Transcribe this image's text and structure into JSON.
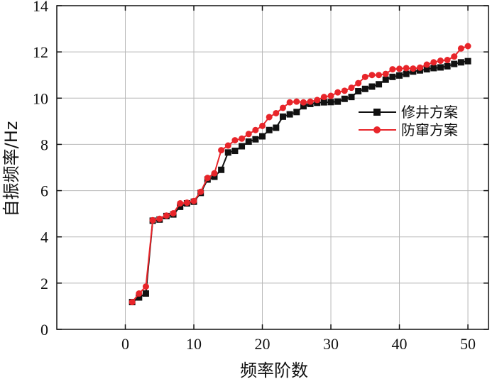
{
  "chart_data": {
    "type": "line",
    "xlabel": "频率阶数",
    "ylabel": "自振频率/Hz",
    "xlim": [
      -10,
      53
    ],
    "ylim": [
      0,
      14
    ],
    "xticks": [
      0,
      10,
      20,
      30,
      40,
      50
    ],
    "yticks": [
      0,
      2,
      4,
      6,
      8,
      10,
      12,
      14
    ],
    "grid": true,
    "legend_position": "right-middle",
    "x": [
      1,
      2,
      3,
      4,
      5,
      6,
      7,
      8,
      9,
      10,
      11,
      12,
      13,
      14,
      15,
      16,
      17,
      18,
      19,
      20,
      21,
      22,
      23,
      24,
      25,
      26,
      27,
      28,
      29,
      30,
      31,
      32,
      33,
      34,
      35,
      36,
      37,
      38,
      39,
      40,
      41,
      42,
      43,
      44,
      45,
      46,
      47,
      48,
      49,
      50
    ],
    "series": [
      {
        "name": "修井方案",
        "color": "#111111",
        "marker": "square",
        "values": [
          1.18,
          1.38,
          1.55,
          4.7,
          4.75,
          4.9,
          4.97,
          5.3,
          5.45,
          5.52,
          5.9,
          6.48,
          6.6,
          6.9,
          7.65,
          7.72,
          7.92,
          8.12,
          8.22,
          8.35,
          8.62,
          8.72,
          9.2,
          9.3,
          9.4,
          9.65,
          9.75,
          9.8,
          9.82,
          9.83,
          9.85,
          9.97,
          10.05,
          10.3,
          10.4,
          10.5,
          10.6,
          10.8,
          10.92,
          10.98,
          11.05,
          11.15,
          11.2,
          11.25,
          11.3,
          11.33,
          11.38,
          11.48,
          11.55,
          11.6
        ]
      },
      {
        "name": "防窜方案",
        "color": "#e8252a",
        "marker": "circle",
        "values": [
          1.18,
          1.55,
          1.85,
          4.72,
          4.78,
          4.92,
          5.02,
          5.45,
          5.48,
          5.55,
          5.95,
          6.55,
          6.75,
          7.75,
          7.95,
          8.18,
          8.25,
          8.45,
          8.62,
          8.8,
          9.18,
          9.35,
          9.58,
          9.82,
          9.85,
          9.82,
          9.85,
          9.92,
          10.05,
          10.1,
          10.25,
          10.32,
          10.45,
          10.65,
          10.92,
          11.0,
          11.0,
          11.05,
          11.25,
          11.27,
          11.3,
          11.28,
          11.32,
          11.45,
          11.55,
          11.62,
          11.65,
          11.8,
          12.15,
          12.25
        ]
      }
    ]
  }
}
